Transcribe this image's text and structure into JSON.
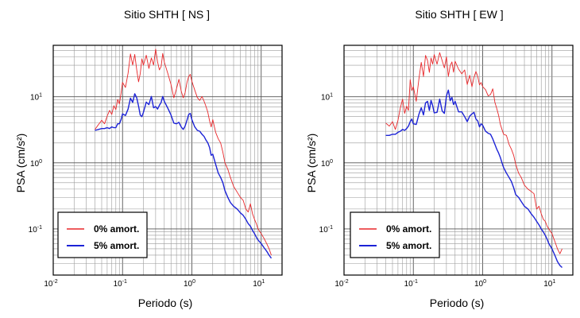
{
  "chart_data": [
    {
      "type": "line",
      "title": "Sitio SHTH [ NS ]",
      "xlabel": "Periodo (s)",
      "ylabel": "PSA (cm/s²)",
      "xscale": "log",
      "yscale": "log",
      "xlim": [
        0.01,
        20
      ],
      "ylim": [
        0.02,
        60
      ],
      "x_ticks": [
        {
          "base": "10",
          "exp": "-2"
        },
        {
          "base": "10",
          "exp": "-1"
        },
        {
          "base": "10",
          "exp": "0"
        },
        {
          "base": "10",
          "exp": "1"
        }
      ],
      "y_ticks": [
        {
          "base": "10",
          "exp": "-1",
          "value": 0.1
        },
        {
          "base": "10",
          "exp": "0",
          "value": 1
        },
        {
          "base": "10",
          "exp": "1",
          "value": 10
        }
      ],
      "grid": true,
      "legend_position": "bottom-left",
      "series": [
        {
          "name": "0% amort.",
          "color": "#e8272a",
          "x": [
            0.04,
            0.045,
            0.05,
            0.055,
            0.06,
            0.065,
            0.07,
            0.075,
            0.08,
            0.085,
            0.09,
            0.095,
            0.1,
            0.11,
            0.12,
            0.13,
            0.14,
            0.15,
            0.16,
            0.17,
            0.18,
            0.19,
            0.2,
            0.22,
            0.24,
            0.26,
            0.28,
            0.3,
            0.32,
            0.34,
            0.36,
            0.38,
            0.4,
            0.45,
            0.5,
            0.55,
            0.6,
            0.65,
            0.7,
            0.75,
            0.8,
            0.85,
            0.9,
            0.95,
            1.0,
            1.1,
            1.2,
            1.3,
            1.4,
            1.5,
            1.6,
            1.7,
            1.8,
            1.9,
            2.0,
            2.2,
            2.4,
            2.6,
            2.8,
            3.0,
            3.3,
            3.6,
            4.0,
            4.5,
            5.0,
            5.5,
            6.0,
            6.5,
            7.0,
            7.5,
            8.0,
            8.5,
            9.0,
            10,
            11,
            12,
            13,
            14
          ],
          "values": [
            3.2,
            3.8,
            4.4,
            3.9,
            5.1,
            6.2,
            5.4,
            7.3,
            6.4,
            9.1,
            7.8,
            11.2,
            16.5,
            13.8,
            22.7,
            44.5,
            30.2,
            43.8,
            25.4,
            16.8,
            22.3,
            37.5,
            30.1,
            42.4,
            26.8,
            38.6,
            30.2,
            52.6,
            33.8,
            25.5,
            28.6,
            45.2,
            33.4,
            22.5,
            15.4,
            9.6,
            13.2,
            18.4,
            12.3,
            9.6,
            11.5,
            16.4,
            20.3,
            21.8,
            17.1,
            12.6,
            9.7,
            8.8,
            10.1,
            8.5,
            7.1,
            5.8,
            4.3,
            3.5,
            4.5,
            2.9,
            2.3,
            2.0,
            1.45,
            1.0,
            0.8,
            0.6,
            0.44,
            0.36,
            0.3,
            0.27,
            0.2,
            0.18,
            0.24,
            0.17,
            0.14,
            0.12,
            0.1,
            0.085,
            0.072,
            0.06,
            0.05,
            0.04
          ]
        },
        {
          "name": "5% amort.",
          "color": "#1c23d6",
          "x": [
            0.04,
            0.045,
            0.05,
            0.055,
            0.06,
            0.065,
            0.07,
            0.075,
            0.08,
            0.085,
            0.09,
            0.095,
            0.1,
            0.11,
            0.12,
            0.13,
            0.14,
            0.15,
            0.16,
            0.17,
            0.18,
            0.19,
            0.2,
            0.22,
            0.24,
            0.26,
            0.28,
            0.3,
            0.32,
            0.34,
            0.36,
            0.38,
            0.4,
            0.45,
            0.5,
            0.55,
            0.6,
            0.65,
            0.7,
            0.75,
            0.8,
            0.85,
            0.9,
            0.95,
            1.0,
            1.1,
            1.2,
            1.3,
            1.4,
            1.5,
            1.6,
            1.7,
            1.8,
            1.9,
            2.0,
            2.2,
            2.4,
            2.6,
            2.8,
            3.0,
            3.3,
            3.6,
            4.0,
            4.5,
            5.0,
            5.5,
            6.0,
            6.5,
            7.0,
            7.5,
            8.0,
            8.5,
            9.0,
            10,
            11,
            12,
            13,
            14
          ],
          "values": [
            3.1,
            3.2,
            3.3,
            3.3,
            3.4,
            3.3,
            3.5,
            3.4,
            3.4,
            3.9,
            3.9,
            4.5,
            5.5,
            5.2,
            6.5,
            9.5,
            8.2,
            11.1,
            9.6,
            7.2,
            5.3,
            5.0,
            5.8,
            8.3,
            7.6,
            10.1,
            6.8,
            7.1,
            6.5,
            7.4,
            8.2,
            10.1,
            8.5,
            6.7,
            5.3,
            4.0,
            3.9,
            4.1,
            3.5,
            3.2,
            3.6,
            4.4,
            5.4,
            5.6,
            4.5,
            3.5,
            3.1,
            3.0,
            2.7,
            2.5,
            2.2,
            2.0,
            1.7,
            1.3,
            1.35,
            0.95,
            0.7,
            0.6,
            0.5,
            0.38,
            0.3,
            0.25,
            0.22,
            0.2,
            0.175,
            0.16,
            0.14,
            0.12,
            0.11,
            0.095,
            0.085,
            0.075,
            0.068,
            0.06,
            0.052,
            0.046,
            0.04,
            0.036
          ]
        }
      ]
    },
    {
      "type": "line",
      "title": "Sitio SHTH [ EW ]",
      "xlabel": "Periodo (s)",
      "ylabel": "PSA (cm/s²)",
      "xscale": "log",
      "yscale": "log",
      "xlim": [
        0.01,
        20
      ],
      "ylim": [
        0.02,
        60
      ],
      "x_ticks": [
        {
          "base": "10",
          "exp": "-2"
        },
        {
          "base": "10",
          "exp": "-1"
        },
        {
          "base": "10",
          "exp": "0"
        },
        {
          "base": "10",
          "exp": "1"
        }
      ],
      "y_ticks": [
        {
          "base": "10",
          "exp": "-1",
          "value": 0.1
        },
        {
          "base": "10",
          "exp": "0",
          "value": 1
        },
        {
          "base": "10",
          "exp": "1",
          "value": 10
        }
      ],
      "grid": true,
      "legend_position": "bottom-left",
      "series": [
        {
          "name": "0% amort.",
          "color": "#e8272a",
          "x": [
            0.04,
            0.045,
            0.05,
            0.055,
            0.06,
            0.065,
            0.07,
            0.075,
            0.08,
            0.085,
            0.09,
            0.095,
            0.1,
            0.11,
            0.12,
            0.13,
            0.14,
            0.15,
            0.16,
            0.17,
            0.18,
            0.19,
            0.2,
            0.22,
            0.24,
            0.26,
            0.28,
            0.3,
            0.32,
            0.34,
            0.36,
            0.38,
            0.4,
            0.45,
            0.5,
            0.55,
            0.6,
            0.65,
            0.7,
            0.75,
            0.8,
            0.85,
            0.9,
            0.95,
            1.0,
            1.1,
            1.2,
            1.3,
            1.4,
            1.5,
            1.6,
            1.7,
            1.8,
            1.9,
            2.0,
            2.2,
            2.4,
            2.6,
            2.8,
            3.0,
            3.3,
            3.6,
            4.0,
            4.5,
            5.0,
            5.5,
            6.0,
            6.5,
            7.0,
            7.5,
            8.0,
            8.5,
            9.0,
            10,
            11,
            12,
            13,
            14
          ],
          "values": [
            4.0,
            3.6,
            4.2,
            3.2,
            4.4,
            6.8,
            9.2,
            5.6,
            7.2,
            6.2,
            18.2,
            12.4,
            14.2,
            8.5,
            18.4,
            33.2,
            20.3,
            42.2,
            35.3,
            23.4,
            38.6,
            31.2,
            43.4,
            31.1,
            46.5,
            35.2,
            27.3,
            40.1,
            20.3,
            29.4,
            33.6,
            23.5,
            34.4,
            26.1,
            22.2,
            25.4,
            15.3,
            21.1,
            14.2,
            19.7,
            24.1,
            20.3,
            15.1,
            16.4,
            14.2,
            12.8,
            10.3,
            10.8,
            13.2,
            8.2,
            6.6,
            5.2,
            3.8,
            3.2,
            2.7,
            2.6,
            1.9,
            1.6,
            1.3,
            0.95,
            0.7,
            0.6,
            0.46,
            0.4,
            0.37,
            0.34,
            0.2,
            0.22,
            0.17,
            0.14,
            0.13,
            0.11,
            0.1,
            0.085,
            0.065,
            0.05,
            0.042,
            0.05
          ]
        },
        {
          "name": "5% amort.",
          "color": "#1c23d6",
          "x": [
            0.04,
            0.045,
            0.05,
            0.055,
            0.06,
            0.065,
            0.07,
            0.075,
            0.08,
            0.085,
            0.09,
            0.095,
            0.1,
            0.11,
            0.12,
            0.13,
            0.14,
            0.15,
            0.16,
            0.17,
            0.18,
            0.19,
            0.2,
            0.22,
            0.24,
            0.26,
            0.28,
            0.3,
            0.32,
            0.34,
            0.36,
            0.38,
            0.4,
            0.45,
            0.5,
            0.55,
            0.6,
            0.65,
            0.7,
            0.75,
            0.8,
            0.85,
            0.9,
            0.95,
            1.0,
            1.1,
            1.2,
            1.3,
            1.4,
            1.5,
            1.6,
            1.7,
            1.8,
            1.9,
            2.0,
            2.2,
            2.4,
            2.6,
            2.8,
            3.0,
            3.3,
            3.6,
            4.0,
            4.5,
            5.0,
            5.5,
            6.0,
            6.5,
            7.0,
            7.5,
            8.0,
            8.5,
            9.0,
            10,
            11,
            12,
            13,
            14
          ],
          "values": [
            2.6,
            2.6,
            2.7,
            2.7,
            2.9,
            3.0,
            3.2,
            3.1,
            3.3,
            3.6,
            4.2,
            4.6,
            3.9,
            3.8,
            5.4,
            6.8,
            5.3,
            8.1,
            8.5,
            6.2,
            8.8,
            7.3,
            5.7,
            5.8,
            9.2,
            6.1,
            5.6,
            10.3,
            12.6,
            8.7,
            9.8,
            7.6,
            8.5,
            5.9,
            5.9,
            5.0,
            4.2,
            5.1,
            5.5,
            5.8,
            4.6,
            4.3,
            3.5,
            3.9,
            3.7,
            3.0,
            2.8,
            2.7,
            2.3,
            1.9,
            1.6,
            1.4,
            1.2,
            1.0,
            0.85,
            0.7,
            0.6,
            0.52,
            0.42,
            0.33,
            0.3,
            0.26,
            0.22,
            0.2,
            0.17,
            0.15,
            0.13,
            0.115,
            0.1,
            0.09,
            0.08,
            0.07,
            0.06,
            0.05,
            0.04,
            0.032,
            0.028,
            0.026
          ]
        }
      ]
    }
  ]
}
